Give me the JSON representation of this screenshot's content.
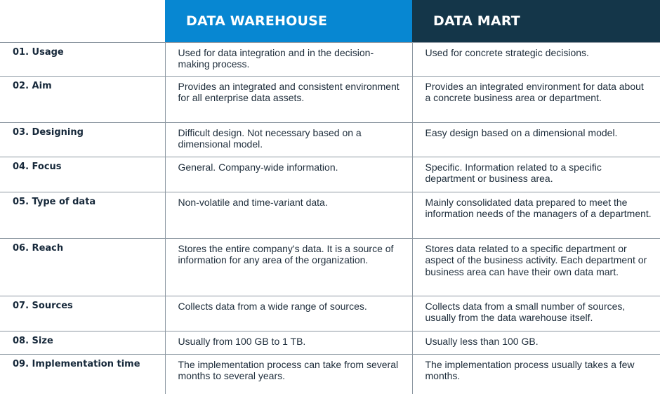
{
  "header": {
    "col1": "DATA WAREHOUSE",
    "col2": "DATA MART"
  },
  "rows": [
    {
      "label": "01. Usage",
      "warehouse": "Used for data integration and in the decision-making process.",
      "mart": "Used for concrete strategic decisions."
    },
    {
      "label": "02. Aim",
      "warehouse": "Provides an integrated and consistent environment for all enterprise data assets.",
      "mart": "Provides an integrated environment for data about a concrete business area or department."
    },
    {
      "label": "03. Designing",
      "warehouse": "Difficult design. Not necessary based on a dimensional model.",
      "mart": "Easy design based on a dimensional model."
    },
    {
      "label": "04. Focus",
      "warehouse": "General. Company-wide information.",
      "mart": "Specific. Information related to a specific department or business area."
    },
    {
      "label": "05. Type of data",
      "warehouse": "Non-volatile and time-variant data.",
      "mart": "Mainly consolidated data prepared to meet the information needs of the managers of a department."
    },
    {
      "label": "06. Reach",
      "warehouse": "Stores the entire company's data. It is a source of information for any area of the organization.",
      "mart": "Stores data related to a specific department or aspect of the business activity. Each department or business area can have their own data mart."
    },
    {
      "label": "07. Sources",
      "warehouse": "Collects data from a wide range of sources.",
      "mart": "Collects data from a small number of sources, usually from the data warehouse itself."
    },
    {
      "label": "08. Size",
      "warehouse": "Usually from 100 GB to 1 TB.",
      "mart": "Usually less than 100 GB."
    },
    {
      "label": "09. Implementation time",
      "warehouse": "The implementation process can take from several months to several years.",
      "mart": "The implementation process usually takes a few months."
    }
  ],
  "colors": {
    "warehouse_header": "#0787d2",
    "mart_header": "#143649",
    "text": "#1e2d3b",
    "grid": "#8d98a2"
  }
}
